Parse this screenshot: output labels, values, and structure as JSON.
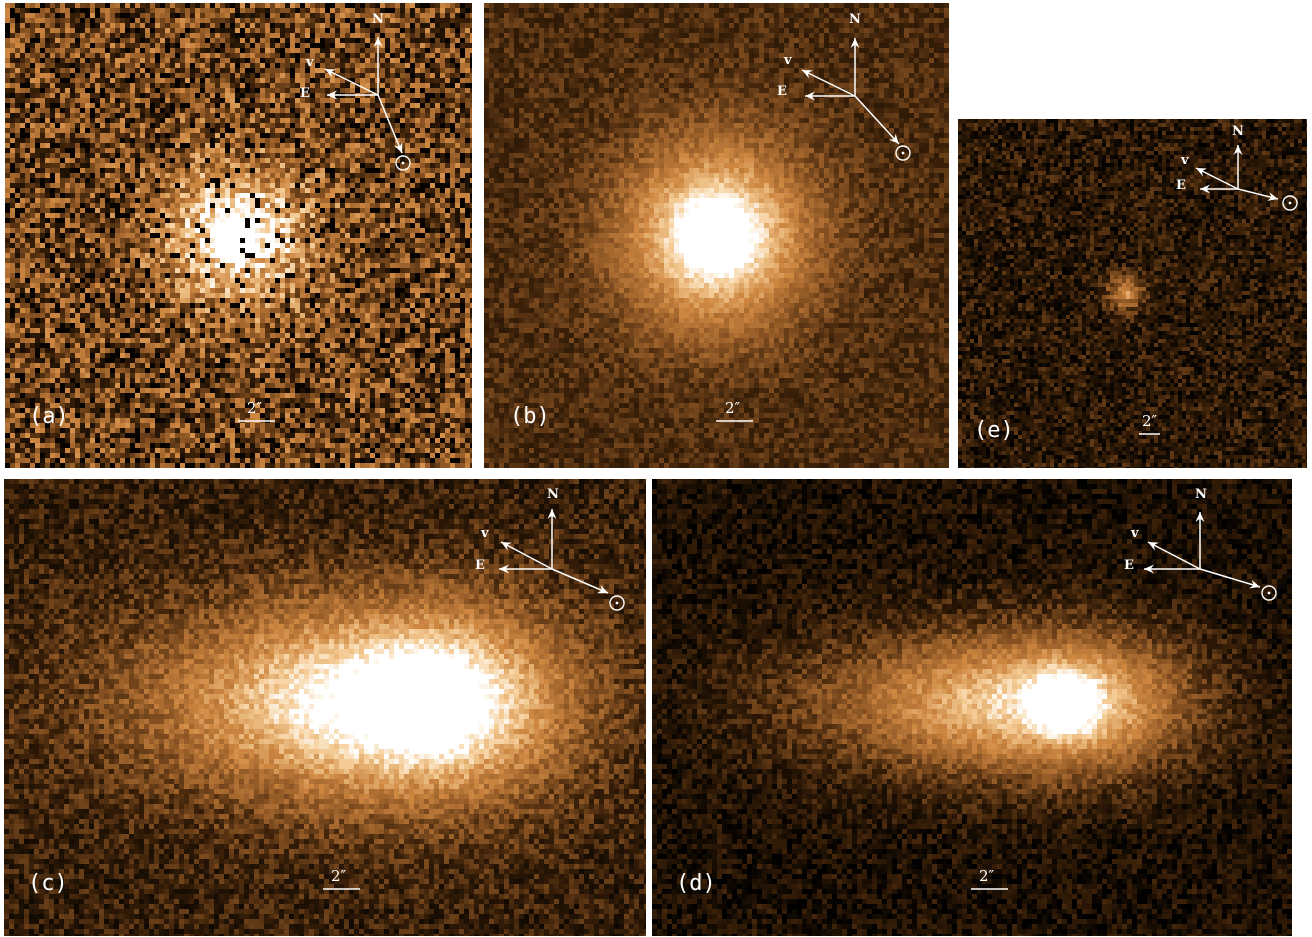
{
  "figure": {
    "background_color": "#ffffff",
    "colormap": [
      "#000000",
      "#3a2008",
      "#8a5422",
      "#c9843f",
      "#f2c68c",
      "#ffffff"
    ]
  },
  "panels": [
    {
      "id": "a",
      "label": "(a)",
      "scale_label": "2″",
      "north": "N",
      "east": "E",
      "velocity": "v",
      "sun_symbol": "☉",
      "noise_level": 0.62,
      "coma_brightness": 0.55
    },
    {
      "id": "b",
      "label": "(b)",
      "scale_label": "2″",
      "north": "N",
      "east": "E",
      "velocity": "v",
      "sun_symbol": "☉",
      "noise_level": 0.22,
      "coma_brightness": 0.75
    },
    {
      "id": "e",
      "label": "(e)",
      "scale_label": "2″",
      "north": "N",
      "east": "E",
      "velocity": "v",
      "sun_symbol": "☉",
      "noise_level": 0.35,
      "coma_brightness": 0.35
    },
    {
      "id": "c",
      "label": "(c)",
      "scale_label": "2″",
      "north": "N",
      "east": "E",
      "velocity": "v",
      "sun_symbol": "☉",
      "noise_level": 0.32,
      "coma_brightness": 0.95
    },
    {
      "id": "d",
      "label": "(d)",
      "scale_label": "2″",
      "north": "N",
      "east": "E",
      "velocity": "v",
      "sun_symbol": "☉",
      "noise_level": 0.3,
      "coma_brightness": 0.85
    }
  ]
}
